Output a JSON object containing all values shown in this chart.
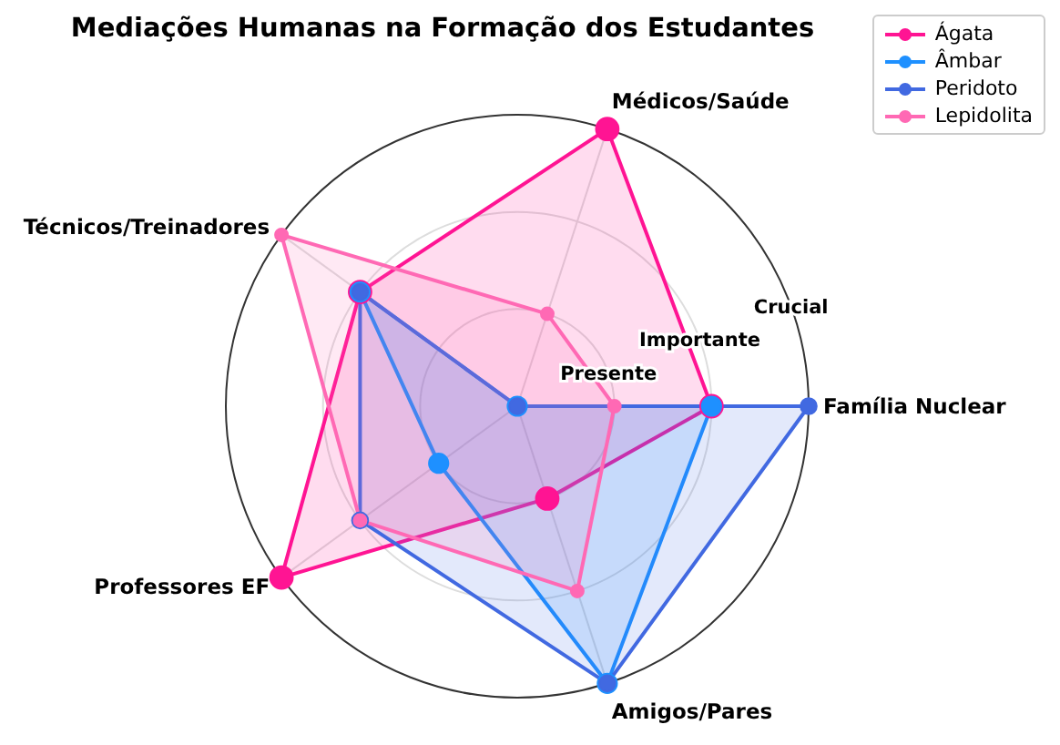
{
  "chart_data": {
    "type": "radar",
    "title": "Mediações Humanas na Formação dos Estudantes",
    "categories": [
      "Médicos/Saúde",
      "Família Nuclear",
      "Amigos/Pares",
      "Professores EF",
      "Técnicos/Treinadores"
    ],
    "series": [
      {
        "name": "Ágata",
        "color": "#ff1493",
        "values": [
          3,
          2,
          1,
          3,
          2
        ]
      },
      {
        "name": "Âmbar",
        "color": "#1e90ff",
        "values": [
          0,
          2,
          3,
          1,
          2
        ]
      },
      {
        "name": "Peridoto",
        "color": "#4169e1",
        "values": [
          0,
          3,
          3,
          2,
          2
        ]
      },
      {
        "name": "Lepidolita",
        "color": "#ff69b4",
        "values": [
          1,
          1,
          2,
          2,
          3
        ]
      }
    ],
    "ylim": [
      0,
      3
    ],
    "yticks": [
      {
        "value": 1,
        "label": "Presente"
      },
      {
        "value": 2,
        "label": "Importante"
      },
      {
        "value": 3,
        "label": "Crucial"
      }
    ],
    "grid": true,
    "legend": "top right",
    "marker": "circle",
    "line_style": "solid"
  }
}
